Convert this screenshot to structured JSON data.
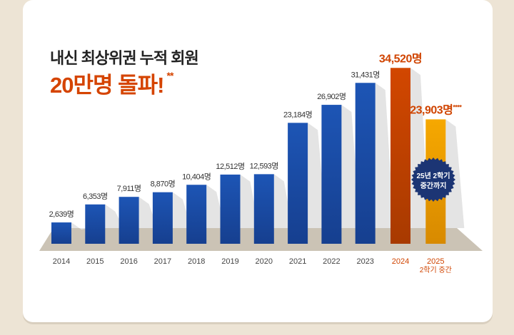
{
  "title_line1": "내신 최상위권 누적 회원",
  "title_line2": "20만명 돌파!",
  "title_mark": "**",
  "badge": {
    "line1": "25년 2학기",
    "line2": "중간까지"
  },
  "colors": {
    "blue": "#1a4fa8",
    "highlight": "#d04400",
    "partial": "#f5a300",
    "badge": "#1c3574"
  },
  "chart_data": {
    "type": "bar",
    "categories": [
      "2014",
      "2015",
      "2016",
      "2017",
      "2018",
      "2019",
      "2020",
      "2021",
      "2022",
      "2023",
      "2024",
      "2025"
    ],
    "category_sublabels": {
      "2025": "2학기 중간"
    },
    "values": [
      2639,
      6353,
      7911,
      8870,
      10404,
      12512,
      12593,
      23184,
      26902,
      31431,
      34520,
      23903
    ],
    "data_labels": [
      "2,639명",
      "6,353명",
      "7,911명",
      "8,870명",
      "10,404명",
      "12,512명",
      "12,593명",
      "23,184명",
      "26,902명",
      "31,431명",
      "34,520명",
      "23,903명"
    ],
    "label_marks": {
      "2025": "****"
    },
    "title": "",
    "xlabel": "",
    "ylabel": "",
    "grid": false
  }
}
